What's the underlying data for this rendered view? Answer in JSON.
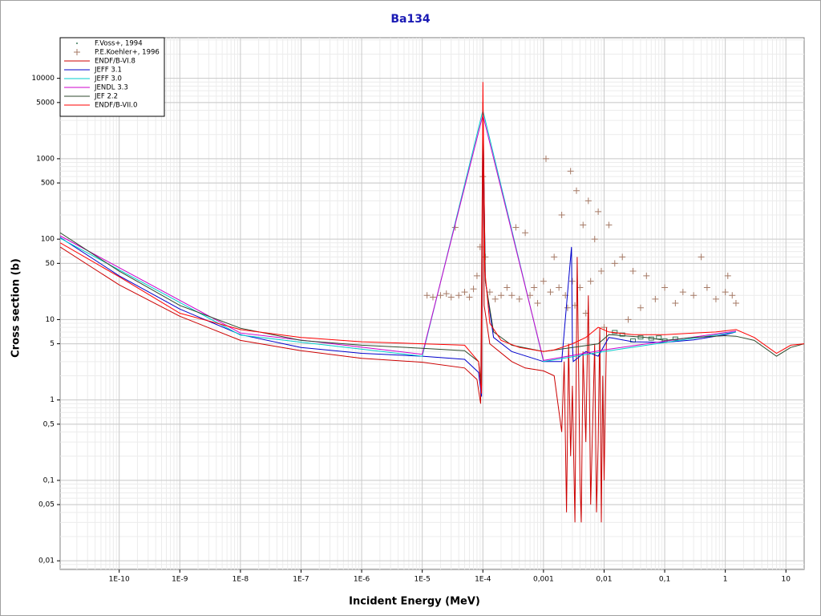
{
  "chart_data": {
    "type": "line",
    "title": "Ba134",
    "x_label": "Incident Energy (MeV)",
    "y_label": "Cross section (b)",
    "log_x": true,
    "log_y": true,
    "grid": true,
    "minor_grid": true,
    "legend": "upper left",
    "xlim": [
      1.06e-11,
      20
    ],
    "ylim": [
      0.0078,
      32000
    ],
    "xticks": [
      {
        "value": 1e-10,
        "label": "1E-10"
      },
      {
        "value": 1e-09,
        "label": "1E-9"
      },
      {
        "value": 1e-08,
        "label": "1E-8"
      },
      {
        "value": 1e-07,
        "label": "1E-7"
      },
      {
        "value": 1e-06,
        "label": "1E-6"
      },
      {
        "value": 1e-05,
        "label": "1E-5"
      },
      {
        "value": 0.0001,
        "label": "1E-4"
      },
      {
        "value": 0.001,
        "label": "0,001"
      },
      {
        "value": 0.01,
        "label": "0,01"
      },
      {
        "value": 0.1,
        "label": "0,1"
      },
      1,
      10
    ],
    "yticks": [
      {
        "value": 0.01,
        "label": "0,01"
      },
      {
        "value": 0.05,
        "label": "0,05"
      },
      {
        "value": 0.1,
        "label": "0,1"
      },
      {
        "value": 0.5,
        "label": "0,5"
      },
      1,
      5,
      10,
      50,
      100,
      500,
      1000,
      5000,
      10000
    ],
    "series": [
      {
        "name": "F.Voss+, 1994",
        "type": "scatter",
        "color": "#3a7a5a",
        "x": [
          0.015,
          0.02,
          0.03,
          0.04,
          0.06,
          0.08,
          0.1,
          0.15
        ],
        "values": [
          7,
          6.5,
          5.5,
          6,
          5.8,
          6,
          5.5,
          5.8
        ]
      },
      {
        "name": "P.E.Koehler+, 1996",
        "type": "scatter",
        "color": "#a57a66",
        "x": [
          1.2e-05,
          1.5e-05,
          2e-05,
          2.5e-05,
          3e-05,
          3.5e-05,
          4e-05,
          5e-05,
          6e-05,
          7e-05,
          8e-05,
          9e-05,
          0.0001,
          0.00011,
          0.00013,
          0.00016,
          0.0002,
          0.00025,
          0.0003,
          0.00035,
          0.0004,
          0.0005,
          0.0006,
          0.0007,
          0.0008,
          0.001,
          0.0011,
          0.0013,
          0.0015,
          0.0018,
          0.002,
          0.0023,
          0.0025,
          0.0028,
          0.003,
          0.0033,
          0.0035,
          0.004,
          0.0045,
          0.005,
          0.0055,
          0.006,
          0.007,
          0.008,
          0.009,
          0.01,
          0.012,
          0.015,
          0.02,
          0.025,
          0.03,
          0.04,
          0.05,
          0.07,
          0.1,
          0.15,
          0.2,
          0.3,
          0.4,
          0.5,
          0.7,
          1,
          1.1,
          1.3,
          1.5
        ],
        "values": [
          20,
          19,
          20,
          21,
          19,
          140,
          20,
          22,
          19,
          24,
          35,
          80,
          600,
          60,
          22,
          18,
          20,
          25,
          20,
          140,
          18,
          120,
          20,
          25,
          16,
          30,
          1000,
          22,
          60,
          25,
          200,
          20,
          14,
          700,
          30,
          15,
          400,
          25,
          150,
          12,
          300,
          30,
          100,
          220,
          40,
          8,
          150,
          50,
          60,
          10,
          40,
          14,
          35,
          18,
          25,
          16,
          22,
          20,
          60,
          25,
          18,
          22,
          35,
          20,
          16
        ]
      },
      {
        "name": "ENDF/B-VI.8",
        "color": "#cc0000",
        "x": [
          1.06e-11,
          1e-10,
          1e-09,
          1e-08,
          1e-07,
          1e-06,
          1e-05,
          5e-05,
          8e-05,
          9.2e-05,
          0.0001,
          0.000105,
          0.00013,
          0.0003,
          0.0005,
          0.001,
          0.0015,
          0.002,
          0.0022,
          0.0024,
          0.0026,
          0.0028,
          0.003,
          0.0033,
          0.0036,
          0.004,
          0.0042,
          0.0045,
          0.005,
          0.0055,
          0.006,
          0.007,
          0.0075,
          0.008,
          0.0085,
          0.009,
          0.0095,
          0.01,
          0.011
        ],
        "values": [
          80,
          27,
          11,
          5.5,
          4.1,
          3.3,
          2.95,
          2.5,
          1.8,
          0.9,
          5000,
          15,
          5,
          3,
          2.5,
          2.3,
          2,
          0.4,
          3,
          0.04,
          5,
          0.2,
          1.5,
          0.03,
          60,
          0.1,
          0.03,
          4,
          0.3,
          20,
          0.05,
          5,
          0.04,
          0.3,
          8,
          0.03,
          2,
          0.1,
          8
        ]
      },
      {
        "name": "JEFF 3.1",
        "color": "#0000cc",
        "x": [
          1.06e-11,
          1e-10,
          1e-09,
          1e-08,
          1e-07,
          1e-06,
          1e-05,
          5e-05,
          8.5e-05,
          9.5e-05,
          0.0001,
          0.00011,
          0.00015,
          0.0003,
          0.001,
          0.002,
          0.0029,
          0.003,
          0.0031,
          0.005,
          0.008,
          0.012,
          0.03,
          0.1,
          0.3,
          1,
          1.5
        ],
        "values": [
          105,
          35,
          13.5,
          6.5,
          4.5,
          3.8,
          3.5,
          3.2,
          2.2,
          1.1,
          4000,
          30,
          6,
          4,
          3,
          3,
          80,
          5,
          3,
          4,
          3.5,
          6,
          5.3,
          5.2,
          5.6,
          6.5,
          7
        ]
      },
      {
        "name": "JEFF 3.0",
        "color": "#00cccc",
        "x": [
          1.06e-11,
          1e-08,
          1e-05,
          0.0001,
          0.001,
          0.01,
          1.5
        ],
        "values": [
          103,
          6.4,
          3.5,
          4000,
          3,
          4,
          7
        ]
      },
      {
        "name": "JENDL 3.3",
        "color": "#cc00cc",
        "x": [
          1.06e-11,
          1e-08,
          1e-05,
          0.0001,
          0.001,
          0.01,
          1.5
        ],
        "values": [
          110,
          6.8,
          3.7,
          3500,
          3.1,
          4.2,
          7.2
        ]
      },
      {
        "name": "JEF 2.2",
        "color": "#2d4a2d",
        "x": [
          1.06e-11,
          1e-10,
          1e-09,
          1e-08,
          1e-07,
          1e-06,
          1e-05,
          5e-05,
          8.5e-05,
          9.5e-05,
          0.0001,
          0.00011,
          0.00015,
          0.0003,
          0.001,
          0.003,
          0.008,
          0.012,
          0.05,
          0.1,
          0.3,
          1,
          1.5,
          3,
          7,
          12,
          20
        ],
        "values": [
          120,
          40,
          15,
          7.8,
          5.5,
          4.8,
          4.4,
          4.1,
          3,
          1.5,
          5000,
          30,
          7,
          4.8,
          4,
          4.5,
          5,
          6.5,
          6,
          5.5,
          6,
          6.3,
          6.2,
          5.5,
          3.5,
          4.5,
          5
        ]
      },
      {
        "name": "ENDF/B-VII.0",
        "color": "#ff0000",
        "x": [
          1.06e-11,
          1e-10,
          1e-09,
          1e-08,
          1e-07,
          1e-06,
          1e-05,
          5e-05,
          8.5e-05,
          9.5e-05,
          0.0001,
          0.000108,
          0.00013,
          0.0002,
          0.0004,
          0.001,
          0.0015,
          0.002,
          0.003,
          0.005,
          0.008,
          0.012,
          0.03,
          0.1,
          0.3,
          0.7,
          1.5,
          3,
          7,
          12,
          20
        ],
        "values": [
          90,
          34,
          12,
          7.5,
          6,
          5.3,
          5,
          4.8,
          3,
          1.2,
          9000,
          40,
          9,
          5.5,
          4.5,
          4,
          4.2,
          4.5,
          5,
          6,
          8,
          7,
          6.5,
          6.5,
          6.8,
          7,
          7.5,
          6,
          3.8,
          4.8,
          5
        ]
      }
    ]
  }
}
